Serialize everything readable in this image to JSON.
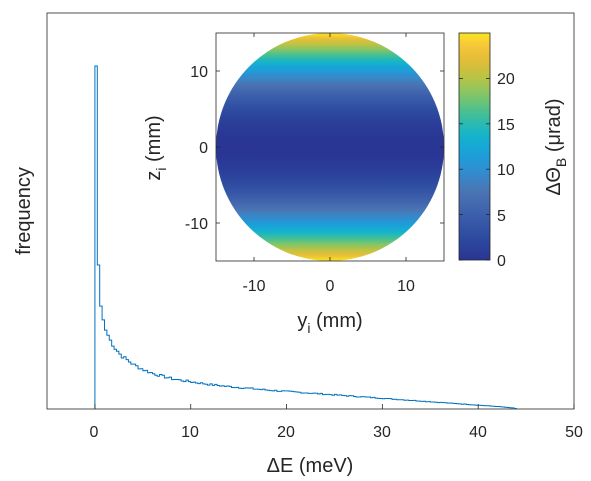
{
  "chart_data": [
    {
      "type": "histogram",
      "xlabel": "ΔE (meV)",
      "ylabel": "frequency",
      "xlim": [
        -5,
        50
      ],
      "xticks": [
        0,
        10,
        20,
        30,
        40,
        50
      ],
      "yticks_shown": false,
      "grid": false,
      "line_color": "#0072BD",
      "x": [
        0.0,
        0.25,
        0.5,
        0.75,
        1.0,
        1.5,
        2.0,
        2.5,
        3.0,
        3.5,
        4.0,
        5.0,
        6.0,
        7.0,
        8.0,
        9.0,
        10.0,
        12.0,
        14.0,
        16.0,
        18.0,
        20.0,
        22.0,
        24.0,
        26.0,
        28.0,
        30.0,
        32.0,
        34.0,
        36.0,
        38.0,
        40.0,
        42.0,
        43.5,
        44.0
      ],
      "values": [
        1.0,
        0.42,
        0.3,
        0.26,
        0.23,
        0.2,
        0.178,
        0.16,
        0.148,
        0.138,
        0.128,
        0.114,
        0.103,
        0.095,
        0.088,
        0.083,
        0.079,
        0.071,
        0.065,
        0.06,
        0.055,
        0.051,
        0.047,
        0.043,
        0.039,
        0.035,
        0.031,
        0.027,
        0.023,
        0.019,
        0.015,
        0.011,
        0.007,
        0.003,
        0.0
      ]
    },
    {
      "type": "heatmap",
      "xlabel": "y_i (mm)",
      "ylabel": "z_i (mm)",
      "xlim": [
        -15,
        15
      ],
      "ylim": [
        -15,
        15
      ],
      "xticks": [
        -10,
        0,
        10
      ],
      "yticks": [
        -10,
        0,
        10
      ],
      "radius": 15,
      "formula": "value = 0.111 * z^2 (depends on z only)",
      "colormap": "parula",
      "colorbar": {
        "label": "ΔΘ_B (μrad)",
        "range": [
          0,
          25
        ],
        "ticks": [
          0,
          5,
          10,
          15,
          20
        ]
      }
    }
  ],
  "labels": {
    "main_xlabel_delta": "Δ",
    "main_xlabel_rest": "E (meV)",
    "main_ylabel": "frequency",
    "inset_xlabel_main": "y",
    "inset_xlabel_sub": "i",
    "inset_xlabel_rest": " (mm)",
    "inset_ylabel_main": "z",
    "inset_ylabel_sub": "i",
    "inset_ylabel_rest": " (mm)",
    "cbar_label_main": "ΔΘ",
    "cbar_label_sub": "B",
    "cbar_label_rest": " (μrad)"
  },
  "tick_text": {
    "main_x": [
      "0",
      "10",
      "20",
      "30",
      "40",
      "50"
    ],
    "inset_x": [
      "-10",
      "0",
      "10"
    ],
    "inset_y": [
      "10",
      "0",
      "-10"
    ],
    "cbar": [
      "0",
      "5",
      "10",
      "15",
      "20"
    ]
  }
}
